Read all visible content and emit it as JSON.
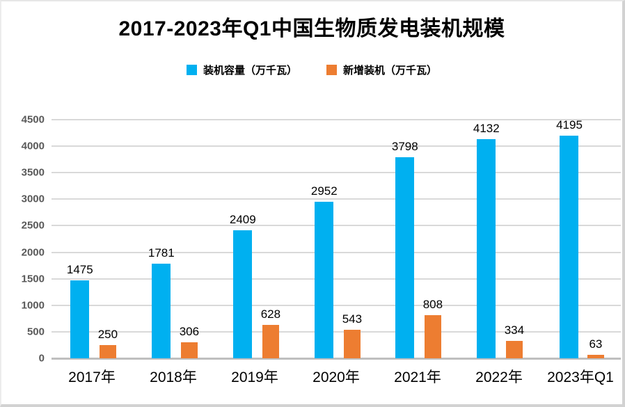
{
  "panel": {
    "background": "#ffffff",
    "frame_shadow_color": "#d2d2d2"
  },
  "colors": {
    "gridline": "#d9d9d9",
    "zero_axis": "#bfbfbf",
    "y_tick_text": "#595959",
    "label_text": "#000000"
  },
  "chart_data": {
    "type": "bar",
    "title": "2017-2023年Q1中国生物质发电装机规模",
    "categories": [
      "2017年",
      "2018年",
      "2019年",
      "2020年",
      "2021年",
      "2022年",
      "2023年Q1"
    ],
    "series": [
      {
        "name": "装机容量（万千瓦）",
        "color": "#00B0F0",
        "values": [
          1475,
          1781,
          2409,
          2952,
          3798,
          4132,
          4195
        ]
      },
      {
        "name": "新增装机（万千瓦）",
        "color": "#ED7D31",
        "values": [
          250,
          306,
          628,
          543,
          808,
          334,
          63
        ]
      }
    ],
    "ylim": [
      0,
      4500
    ],
    "yticks": [
      0,
      500,
      1000,
      1500,
      2000,
      2500,
      3000,
      3500,
      4000,
      4500
    ],
    "grid": true,
    "legend_position": "top",
    "value_labels": true
  }
}
